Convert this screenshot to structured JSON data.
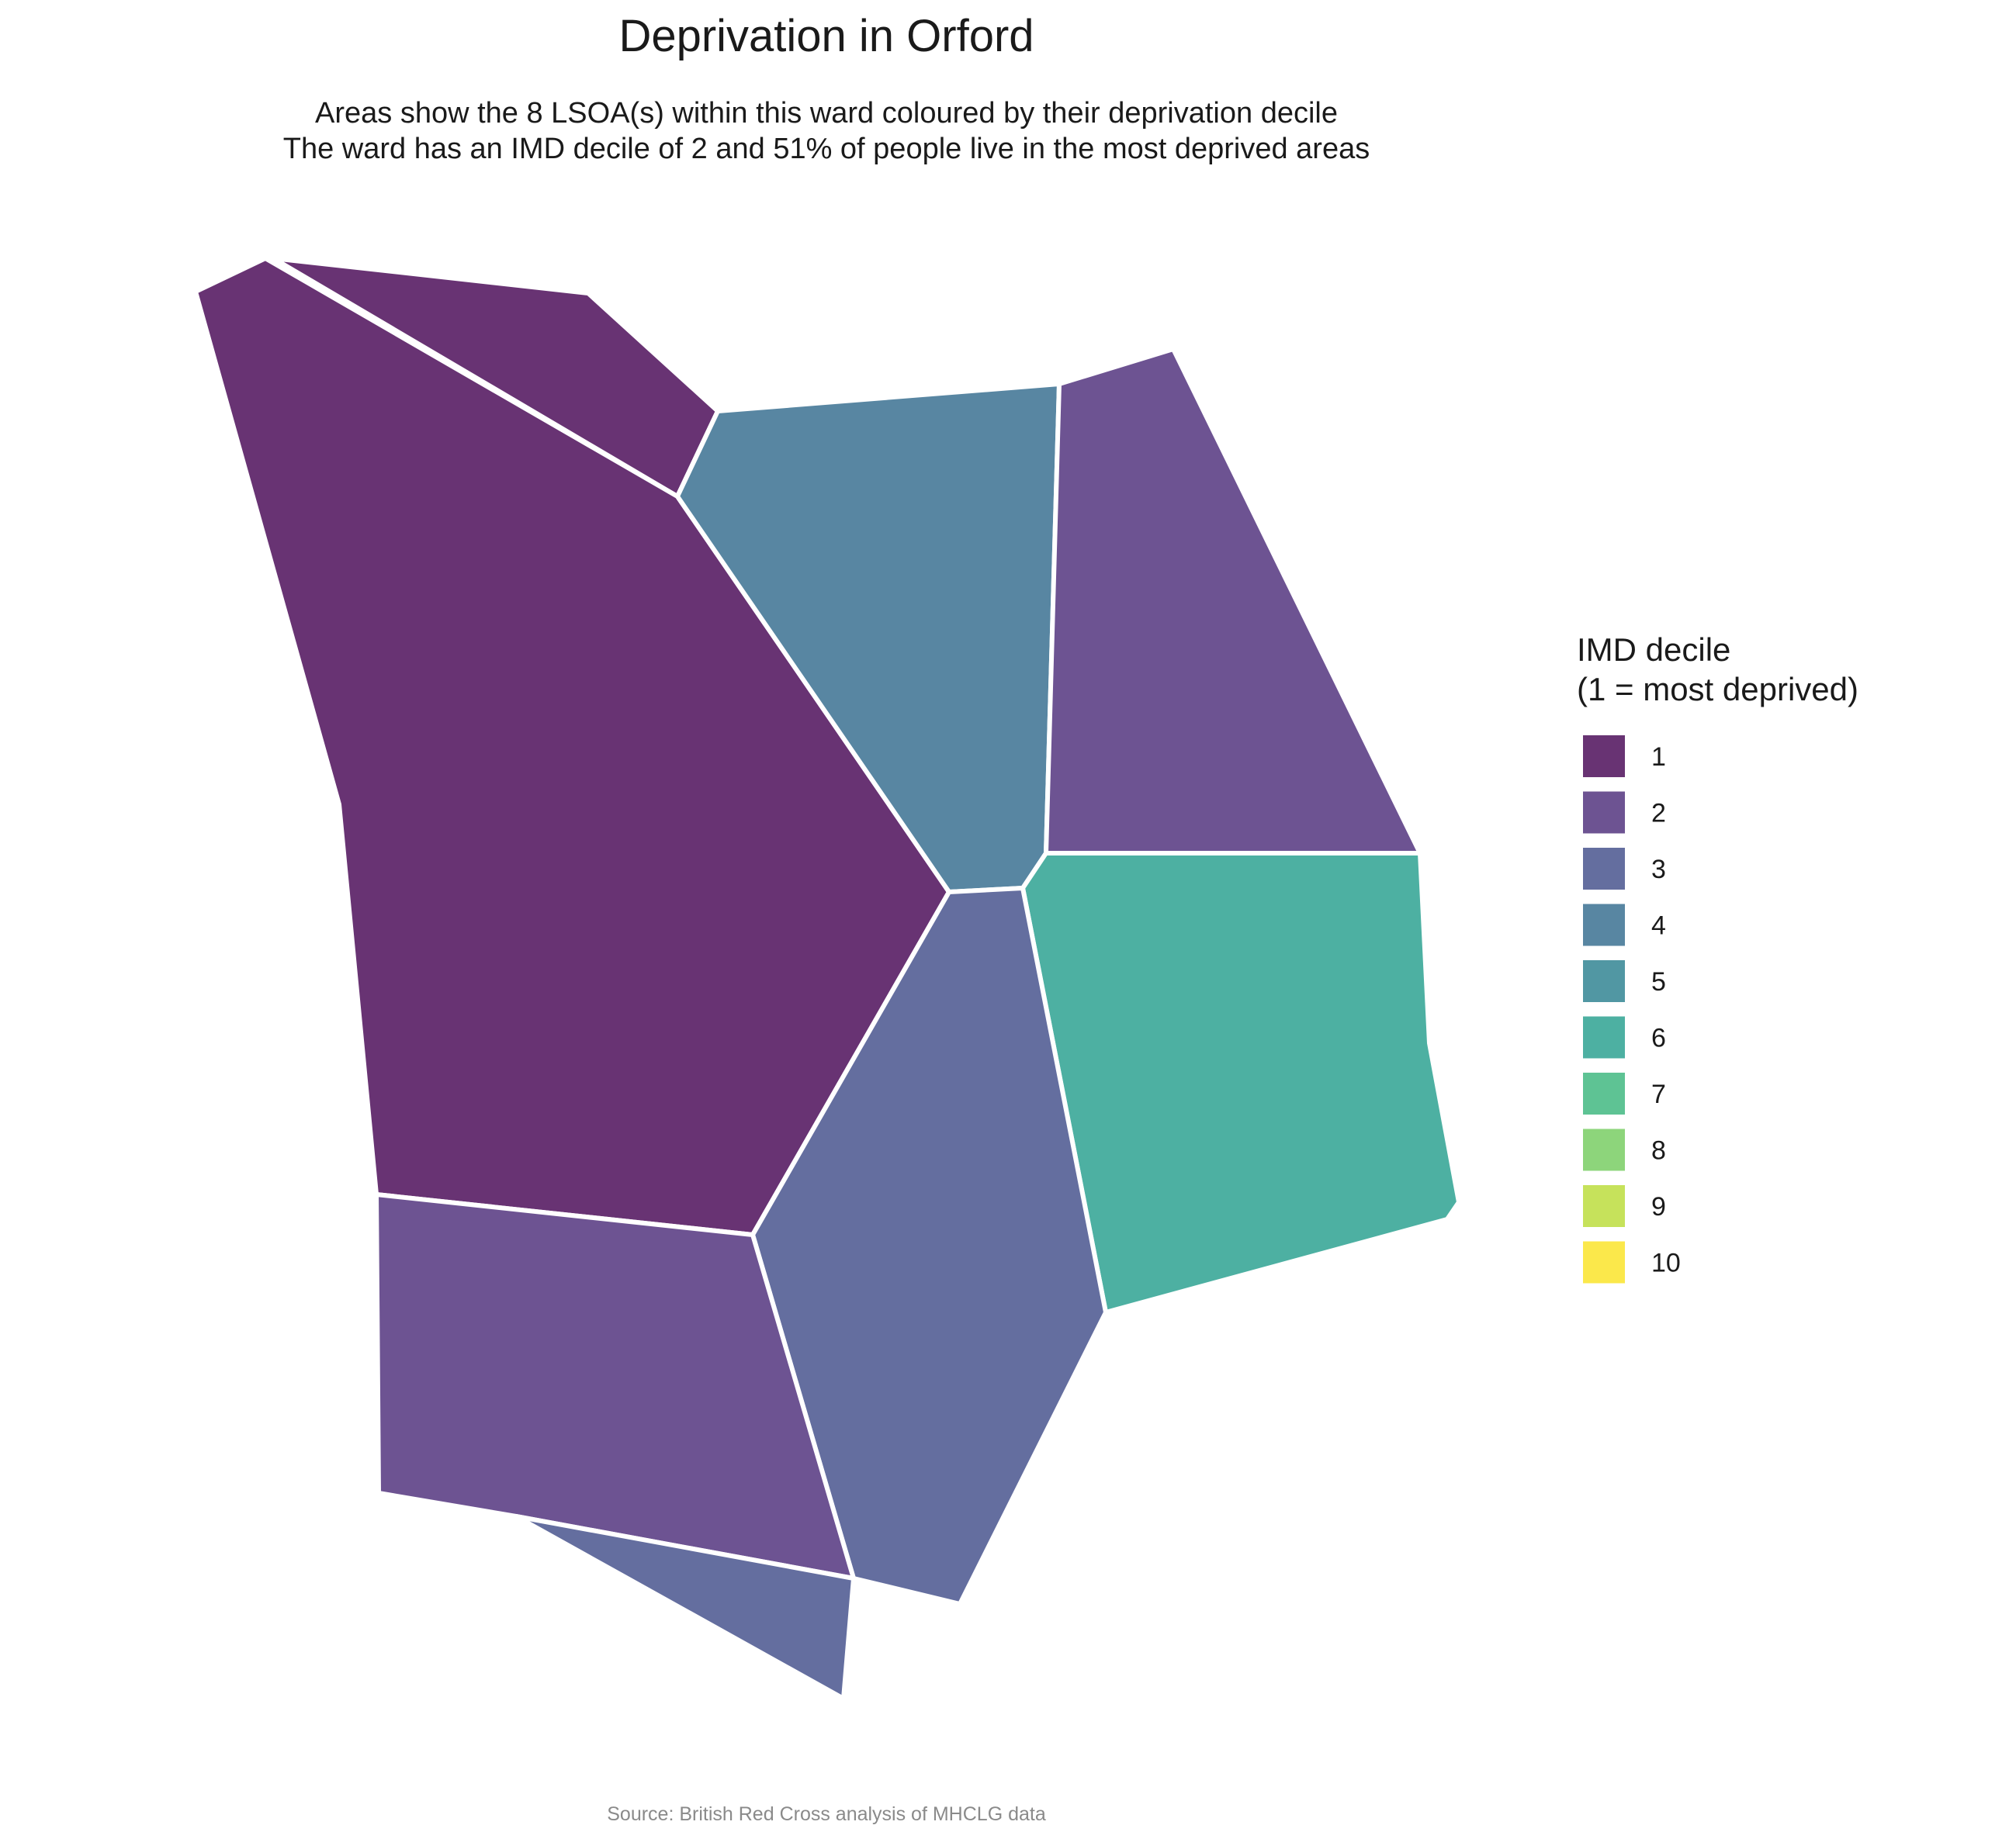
{
  "title": "Deprivation in Orford",
  "subtitle_line1": "Areas show the 8 LSOA(s) within this ward coloured by their deprivation decile",
  "subtitle_line2": "The ward has an IMD decile of 2 and 51% of people live in the most deprived areas",
  "caption": "Source: British Red Cross analysis of MHCLG data",
  "legend": {
    "title_line1": "IMD decile",
    "title_line2": "(1 = most deprived)",
    "items": [
      {
        "label": "1",
        "color": "#683373"
      },
      {
        "label": "2",
        "color": "#6d5392"
      },
      {
        "label": "3",
        "color": "#646e9f"
      },
      {
        "label": "4",
        "color": "#5886a2"
      },
      {
        "label": "5",
        "color": "#5197a3"
      },
      {
        "label": "6",
        "color": "#4db0a2"
      },
      {
        "label": "7",
        "color": "#5ec394"
      },
      {
        "label": "8",
        "color": "#8dd57b"
      },
      {
        "label": "9",
        "color": "#c6e25b"
      },
      {
        "label": "10",
        "color": "#fbe84b"
      }
    ]
  },
  "chart_data": {
    "type": "choropleth",
    "ward": "Orford",
    "lsoa_count": 8,
    "ward_imd_decile": 2,
    "pct_people_in_most_deprived_areas": 51,
    "areas": [
      {
        "id": "lsoa-north-west-strip",
        "decile": 1
      },
      {
        "id": "lsoa-west-large",
        "decile": 1
      },
      {
        "id": "lsoa-north-centre",
        "decile": 4
      },
      {
        "id": "lsoa-north-east",
        "decile": 2
      },
      {
        "id": "lsoa-east",
        "decile": 6
      },
      {
        "id": "lsoa-south-centre",
        "decile": 3
      },
      {
        "id": "lsoa-south-west",
        "decile": 2
      },
      {
        "id": "lsoa-south-tip",
        "decile": 3
      }
    ]
  }
}
